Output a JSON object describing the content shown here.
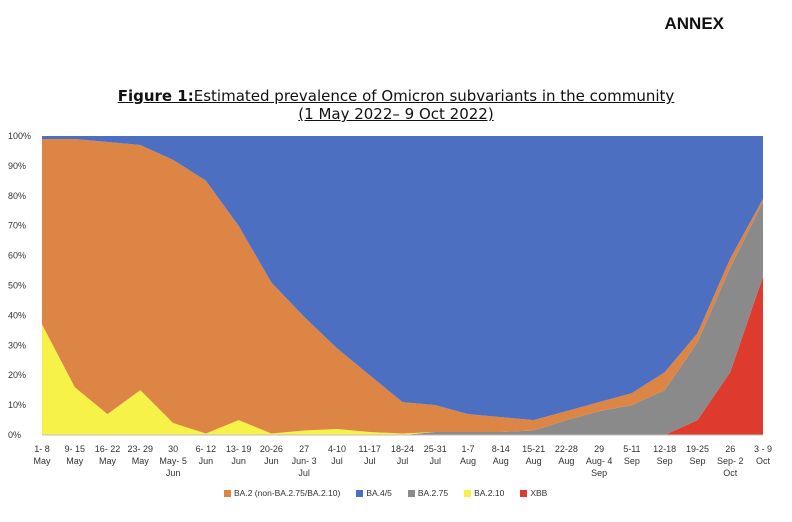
{
  "header": {
    "annex": "ANNEX"
  },
  "figure": {
    "label": "Figure 1:",
    "title": "Estimated prevalence of Omicron subvariants in the community",
    "subtitle": "(1 May 2022– 9 Oct 2022)"
  },
  "colors": {
    "BA.2": "#dd8544",
    "BA.4/5": "#4c6fc2",
    "BA.2.75": "#8a8a8a",
    "BA.2.10": "#f7f248",
    "XBB": "#de3b2e"
  },
  "chart_data": {
    "type": "area",
    "stacked": true,
    "ylim": [
      0,
      100
    ],
    "yticks": [
      "0%",
      "10%",
      "20%",
      "30%",
      "40%",
      "50%",
      "60%",
      "70%",
      "80%",
      "90%",
      "100%"
    ],
    "categories": [
      [
        "1- 8",
        "May"
      ],
      [
        "9- 15",
        "May"
      ],
      [
        "16- 22",
        "May"
      ],
      [
        "23- 29",
        "May"
      ],
      [
        "30",
        "May- 5",
        "Jun"
      ],
      [
        "6- 12",
        "Jun"
      ],
      [
        "13- 19",
        "Jun"
      ],
      [
        "20-26",
        "Jun"
      ],
      [
        "27",
        "Jun- 3",
        "Jul"
      ],
      [
        "4-10",
        "Jul"
      ],
      [
        "11-17",
        "Jul"
      ],
      [
        "18-24",
        "Jul"
      ],
      [
        "25-31",
        "Jul"
      ],
      [
        "1-7",
        "Aug"
      ],
      [
        "8-14",
        "Aug"
      ],
      [
        "15-21",
        "Aug"
      ],
      [
        "22-28",
        "Aug"
      ],
      [
        "29",
        "Aug- 4",
        "Sep"
      ],
      [
        "5-11",
        "Sep"
      ],
      [
        "12-18",
        "Sep"
      ],
      [
        "19-25",
        "Sep"
      ],
      [
        "26",
        "Sep- 2",
        "Oct"
      ],
      [
        "3 - 9",
        "Oct"
      ]
    ],
    "series": [
      {
        "name": "XBB",
        "values": [
          0,
          0,
          0,
          0,
          0,
          0,
          0,
          0,
          0,
          0,
          0,
          0,
          0,
          0,
          0,
          0,
          0,
          0,
          0,
          0,
          5,
          21,
          53
        ]
      },
      {
        "name": "BA.2.75",
        "values": [
          0,
          0,
          0,
          0,
          0,
          0,
          0,
          0,
          0,
          0,
          0,
          0,
          1,
          1,
          1,
          1.5,
          5,
          8,
          10,
          15,
          26,
          35,
          25
        ]
      },
      {
        "name": "BA.2.10",
        "values": [
          37,
          16,
          7,
          15,
          4,
          0.5,
          5,
          0.5,
          1.5,
          2,
          1,
          0.5,
          0,
          0,
          0,
          0,
          0,
          0,
          0,
          0,
          0,
          0,
          0
        ]
      },
      {
        "name": "BA.2 (non-BA.2.75/BA.2.10)",
        "values": [
          62,
          83,
          91,
          82,
          88,
          84.5,
          65,
          50.5,
          38,
          27,
          19,
          10.5,
          9,
          6,
          5,
          3.5,
          3,
          3,
          4,
          6,
          3,
          3,
          1
        ]
      },
      {
        "name": "BA.4/5",
        "values": [
          1,
          1,
          2,
          3,
          8,
          15,
          30,
          49,
          60.5,
          71,
          80,
          89,
          90,
          93,
          94,
          95,
          92,
          89,
          86,
          79,
          66,
          41,
          21
        ]
      }
    ],
    "legend": [
      "BA.2 (non-BA.2.75/BA.2.10)",
      "BA.4/5",
      "BA.2.75",
      "BA.2.10",
      "XBB"
    ],
    "legend_position": "bottom"
  }
}
